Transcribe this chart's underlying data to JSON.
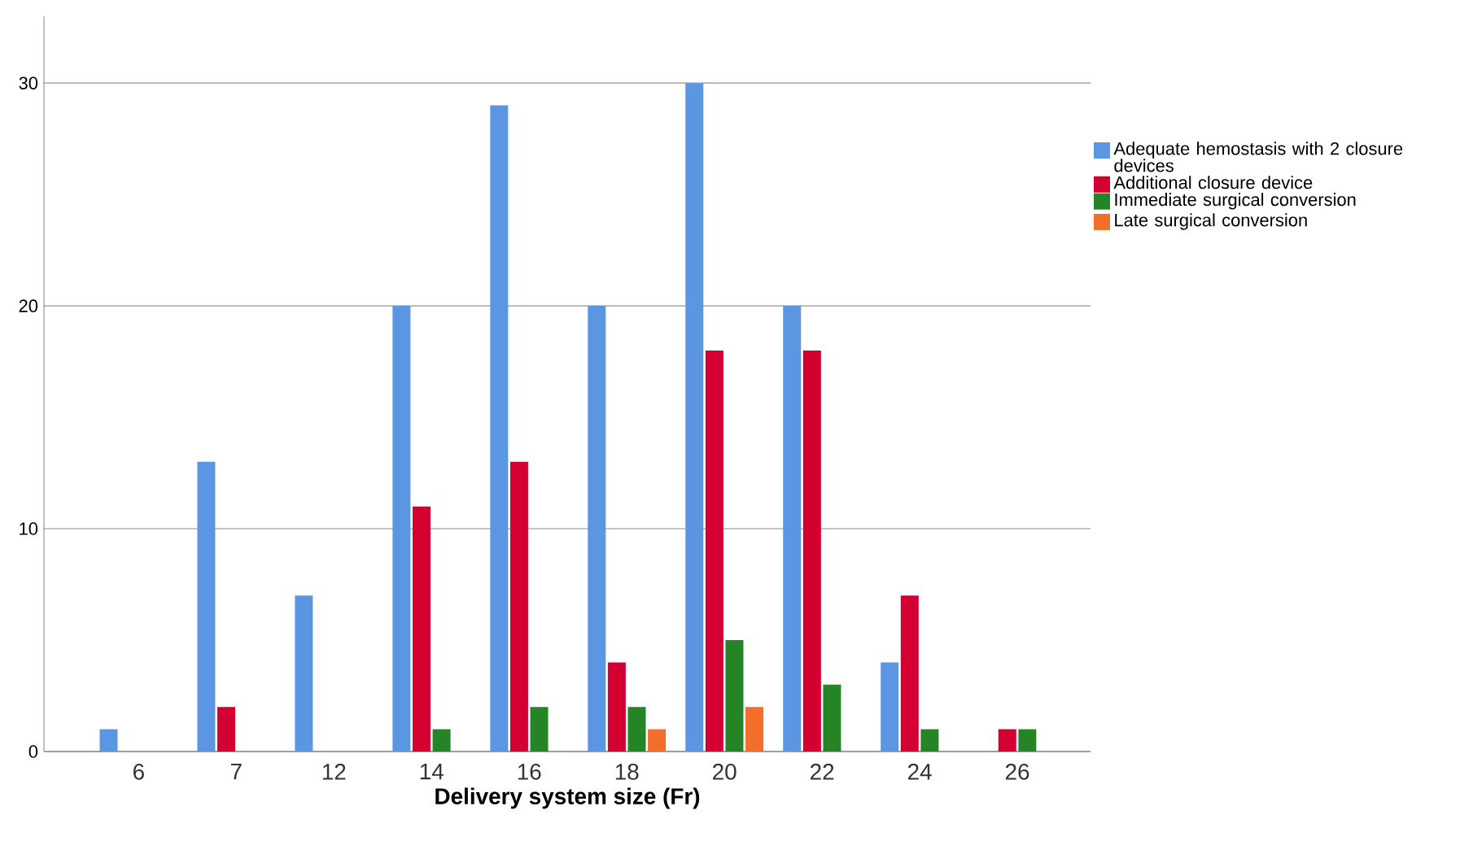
{
  "chart_data": {
    "type": "bar",
    "xlabel": "Delivery system size (Fr)",
    "categories": [
      "6",
      "7",
      "12",
      "14",
      "16",
      "18",
      "20",
      "22",
      "24",
      "26"
    ],
    "series": [
      {
        "name": "Adequate hemostasis with 2 closure devices",
        "color": "#5a96e2",
        "values": [
          1,
          13,
          7,
          20,
          29,
          20,
          30,
          20,
          4,
          0
        ]
      },
      {
        "name": "Additional closure device",
        "color": "#d50032",
        "values": [
          0,
          2,
          0,
          11,
          13,
          4,
          18,
          18,
          7,
          1
        ]
      },
      {
        "name": "Immediate surgical conversion",
        "color": "#258425",
        "values": [
          0,
          0,
          0,
          1,
          2,
          2,
          5,
          3,
          1,
          1
        ]
      },
      {
        "name": "Late surgical conversion",
        "color": "#f26e2a",
        "values": [
          0,
          0,
          0,
          0,
          0,
          1,
          2,
          0,
          0,
          0
        ]
      }
    ],
    "ylim": [
      0,
      33
    ],
    "yticks": [
      0,
      10,
      20,
      30
    ],
    "grid": "y",
    "legend": "right"
  }
}
